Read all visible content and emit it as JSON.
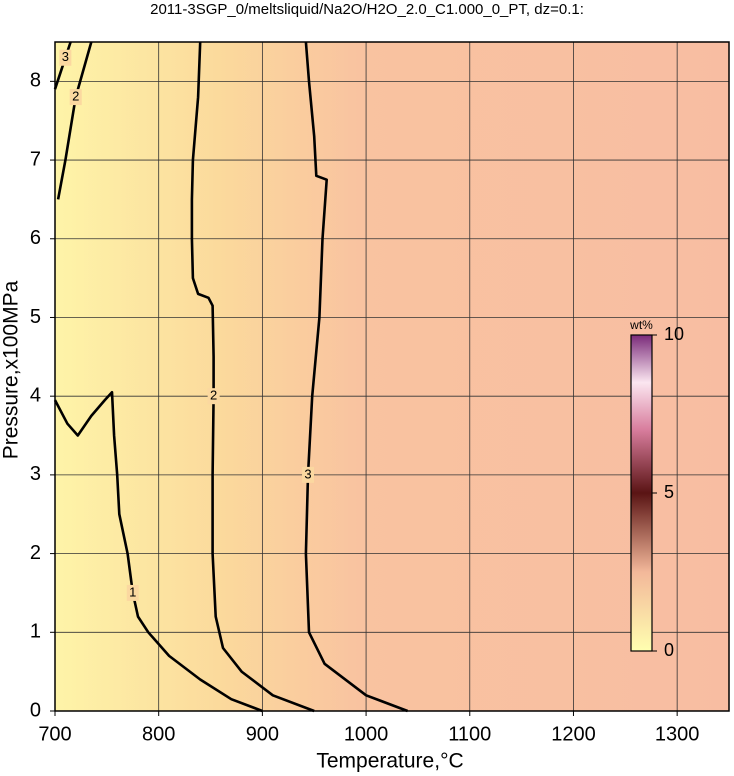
{
  "chart_data": {
    "type": "contour",
    "title": "2011-3SGP_0/meltsliquid/Na2O/H2O_2.0_C1.000_0_PT, dz=0.1:",
    "xlabel": "Temperature,°C",
    "ylabel": "Pressure,x100MPa",
    "xlim": [
      700,
      1350
    ],
    "ylim": [
      0,
      8.5
    ],
    "xticks": [
      700,
      800,
      900,
      1000,
      1100,
      1200,
      1300
    ],
    "yticks": [
      0,
      1,
      2,
      3,
      4,
      5,
      6,
      7,
      8
    ],
    "grid": true,
    "contours": [
      {
        "label": "1",
        "x": [
          700,
          712,
          722,
          735,
          748,
          755,
          757,
          760,
          762,
          770,
          775,
          780,
          790,
          810,
          840,
          870,
          900
        ],
        "y": [
          3.95,
          3.65,
          3.5,
          3.75,
          3.95,
          4.05,
          3.5,
          3.0,
          2.5,
          2.0,
          1.5,
          1.2,
          1.0,
          0.7,
          0.4,
          0.15,
          0
        ]
      },
      {
        "label": "2",
        "x": [
          840,
          838,
          833,
          832,
          832,
          833,
          838,
          848,
          852,
          853,
          853,
          852,
          852,
          855,
          862,
          880,
          910,
          950
        ],
        "y": [
          8.5,
          7.8,
          7.0,
          6.5,
          6.0,
          5.5,
          5.3,
          5.25,
          5.15,
          4.5,
          4.0,
          3.0,
          2.0,
          1.2,
          0.8,
          0.5,
          0.2,
          0
        ]
      },
      {
        "label": "2",
        "x": [
          703,
          710,
          720,
          735
        ],
        "y": [
          6.5,
          7.0,
          7.8,
          8.5
        ]
      },
      {
        "label": "3",
        "x": [
          942,
          945,
          950,
          952,
          962,
          958,
          955,
          948,
          944,
          942,
          945,
          960,
          1000,
          1040
        ],
        "y": [
          8.5,
          8.0,
          7.3,
          6.8,
          6.75,
          6.0,
          5.0,
          4.0,
          3.0,
          2.0,
          1.0,
          0.6,
          0.2,
          0
        ]
      },
      {
        "label": "3",
        "x": [
          700,
          710,
          715
        ],
        "y": [
          7.9,
          8.3,
          8.5
        ]
      }
    ],
    "colorbar": {
      "label": "wt%",
      "lim": [
        0,
        10
      ],
      "ticks": [
        0,
        5,
        10
      ]
    }
  }
}
